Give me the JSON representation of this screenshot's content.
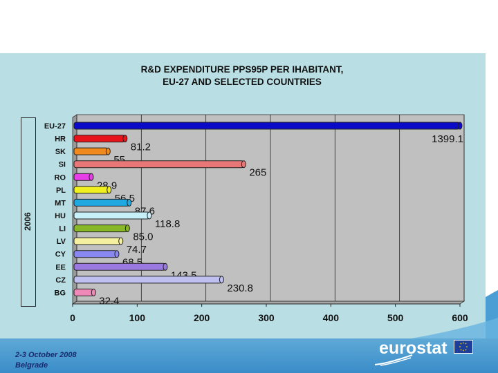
{
  "footer": {
    "date": "2-3 October 2008",
    "place": "Belgrade",
    "logo": "eurostat"
  },
  "colors": {
    "panel": "#b9dee4",
    "plot_bg": "#c0c0c0",
    "footer": "#3a8cc9"
  },
  "chart_data": {
    "type": "bar",
    "orientation": "horizontal",
    "title": "R&D EXPENDITURE PPS95P PER IHABITANT,",
    "subtitle": "EU-27 AND SELECTED COUNTRIES",
    "group_label": "2006",
    "categories": [
      "EU-27",
      "HR",
      "SK",
      "SI",
      "RO",
      "PL",
      "MT",
      "HU",
      "LI",
      "LV",
      "CY",
      "EE",
      "CZ",
      "BG"
    ],
    "values": [
      1399.1,
      81.2,
      55,
      265,
      28.9,
      56.5,
      87.6,
      118.8,
      85.0,
      74.7,
      68.5,
      143.5,
      230.8,
      32.4
    ],
    "value_labels": [
      "1399.1",
      "81.2",
      "55",
      "265",
      "28.9",
      "56.5",
      "87.6",
      "118.8",
      "85.0",
      "74.7",
      "68.5",
      "143.5",
      "230.8",
      "32.4"
    ],
    "bar_colors": [
      "#0a0ac8",
      "#e8141c",
      "#f08a1c",
      "#e87878",
      "#e83ee8",
      "#f0f020",
      "#20a8e0",
      "#c8f0f8",
      "#88b828",
      "#f4f0a0",
      "#8888f0",
      "#9a7ae0",
      "#c0c0f0",
      "#f088b8"
    ],
    "xlim": [
      0,
      600
    ],
    "xticks": [
      "0",
      "100",
      "200",
      "300",
      "400",
      "500",
      "600"
    ],
    "grid": true
  }
}
